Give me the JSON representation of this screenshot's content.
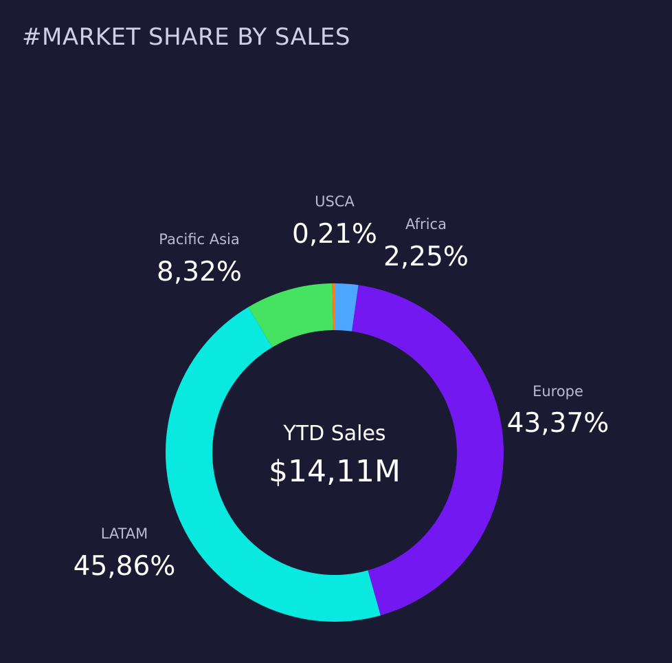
{
  "title": "#MARKET SHARE BY SALES",
  "center": {
    "label": "YTD Sales",
    "value": "$14,11M"
  },
  "chart_data": {
    "type": "pie",
    "variant": "donut",
    "categories": [
      "Africa",
      "Europe",
      "LATAM",
      "Pacific Asia",
      "USCA"
    ],
    "values": [
      2.25,
      43.37,
      45.86,
      8.32,
      0.21
    ],
    "labels": [
      "2,25%",
      "43,37%",
      "45,86%",
      "8,32%",
      "0,21%"
    ],
    "colors": [
      "#4da6ff",
      "#7418f2",
      "#09e9df",
      "#46e363",
      "#ff7a1a"
    ],
    "title": "#MARKET SHARE BY SALES"
  }
}
